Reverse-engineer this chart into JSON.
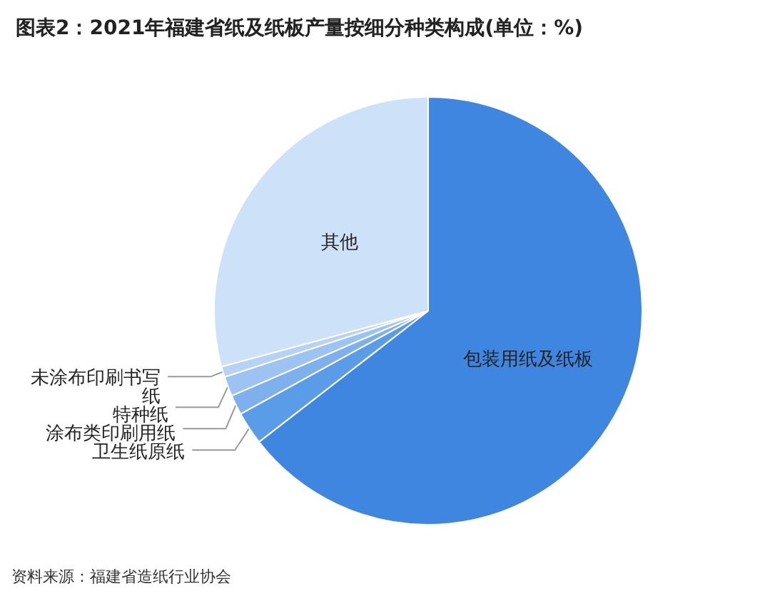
{
  "chart_data": {
    "type": "pie",
    "title": "图表2：2021年福建省纸及纸板产量按细分种类构成(单位：%)",
    "categories": [
      "包装用纸及纸板",
      "卫生纸原纸",
      "涂布类印刷用纸",
      "特种纸",
      "未涂布印刷书写纸",
      "其他"
    ],
    "values": [
      64.5,
      2.5,
      1.5,
      1.5,
      0.8,
      29.2
    ],
    "colors": [
      "#3f86e0",
      "#5b9ce8",
      "#7eb0ee",
      "#9cc3f2",
      "#b6d3f6",
      "#cde1f9"
    ],
    "annotations": [
      "资料来源：福建省造纸行业协会"
    ]
  }
}
